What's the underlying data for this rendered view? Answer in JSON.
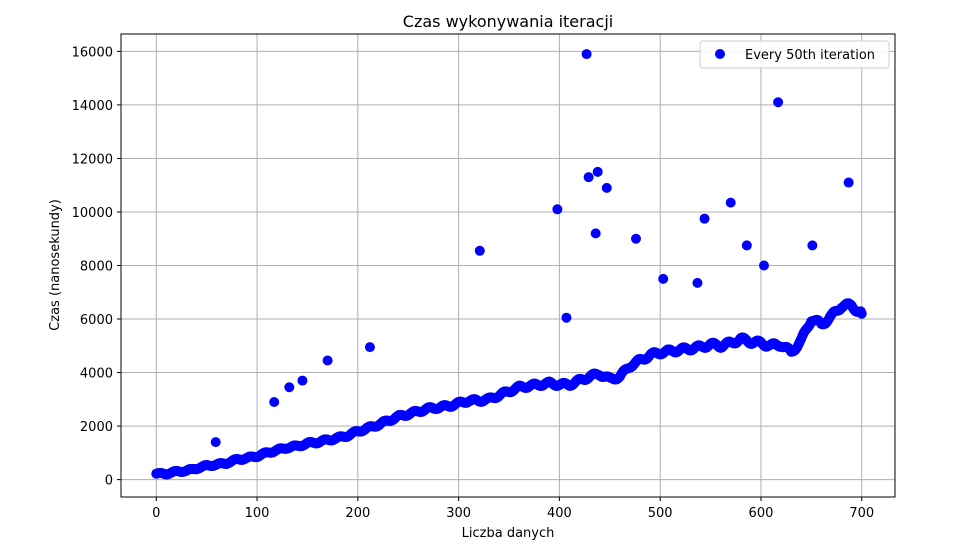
{
  "chart_data": {
    "type": "scatter",
    "title": "Czas wykonywania iteracji",
    "xlabel": "Liczba danych",
    "ylabel": "Czas (nanosekundy)",
    "xlim": [
      -35,
      733
    ],
    "ylim": [
      -650,
      16650
    ],
    "xticks": [
      0,
      100,
      200,
      300,
      400,
      500,
      600,
      700
    ],
    "yticks": [
      0,
      2000,
      4000,
      6000,
      8000,
      10000,
      12000,
      14000,
      16000
    ],
    "grid": true,
    "legend_position": "top-right",
    "series": [
      {
        "name": "Every 50th iteration",
        "color": "#0000ff",
        "trend": [
          [
            0,
            220
          ],
          [
            10,
            220
          ],
          [
            20,
            300
          ],
          [
            30,
            330
          ],
          [
            40,
            420
          ],
          [
            50,
            520
          ],
          [
            60,
            560
          ],
          [
            70,
            620
          ],
          [
            80,
            750
          ],
          [
            90,
            800
          ],
          [
            100,
            880
          ],
          [
            110,
            1000
          ],
          [
            120,
            1100
          ],
          [
            130,
            1200
          ],
          [
            140,
            1250
          ],
          [
            150,
            1350
          ],
          [
            160,
            1400
          ],
          [
            170,
            1480
          ],
          [
            180,
            1550
          ],
          [
            190,
            1650
          ],
          [
            200,
            1800
          ],
          [
            210,
            1920
          ],
          [
            220,
            2050
          ],
          [
            230,
            2200
          ],
          [
            240,
            2350
          ],
          [
            250,
            2450
          ],
          [
            260,
            2550
          ],
          [
            270,
            2650
          ],
          [
            280,
            2700
          ],
          [
            290,
            2750
          ],
          [
            300,
            2850
          ],
          [
            310,
            2950
          ],
          [
            320,
            2950
          ],
          [
            330,
            3000
          ],
          [
            340,
            3150
          ],
          [
            350,
            3300
          ],
          [
            360,
            3450
          ],
          [
            370,
            3500
          ],
          [
            380,
            3550
          ],
          [
            390,
            3600
          ],
          [
            400,
            3550
          ],
          [
            410,
            3550
          ],
          [
            420,
            3700
          ],
          [
            430,
            3850
          ],
          [
            440,
            3950
          ],
          [
            450,
            3750
          ],
          [
            460,
            3850
          ],
          [
            470,
            4250
          ],
          [
            480,
            4450
          ],
          [
            490,
            4650
          ],
          [
            500,
            4750
          ],
          [
            510,
            4800
          ],
          [
            520,
            4850
          ],
          [
            530,
            4900
          ],
          [
            540,
            4950
          ],
          [
            550,
            5050
          ],
          [
            560,
            5000
          ],
          [
            570,
            5100
          ],
          [
            580,
            5250
          ],
          [
            590,
            5150
          ],
          [
            600,
            5100
          ],
          [
            610,
            5000
          ],
          [
            620,
            5050
          ],
          [
            630,
            4750
          ],
          [
            640,
            5200
          ],
          [
            650,
            6000
          ],
          [
            660,
            5800
          ],
          [
            670,
            6100
          ],
          [
            680,
            6500
          ],
          [
            690,
            6500
          ],
          [
            700,
            6200
          ]
        ],
        "outliers": [
          [
            59,
            1400
          ],
          [
            117,
            2900
          ],
          [
            132,
            3450
          ],
          [
            145,
            3700
          ],
          [
            170,
            4450
          ],
          [
            212,
            4950
          ],
          [
            321,
            8550
          ],
          [
            398,
            10100
          ],
          [
            407,
            6050
          ],
          [
            427,
            15900
          ],
          [
            429,
            11300
          ],
          [
            436,
            9200
          ],
          [
            438,
            11500
          ],
          [
            447,
            10900
          ],
          [
            476,
            9000
          ],
          [
            503,
            7500
          ],
          [
            537,
            7350
          ],
          [
            544,
            9750
          ],
          [
            570,
            10350
          ],
          [
            586,
            8750
          ],
          [
            603,
            8000
          ],
          [
            617,
            14100
          ],
          [
            651,
            8750
          ],
          [
            687,
            11100
          ]
        ]
      }
    ]
  }
}
